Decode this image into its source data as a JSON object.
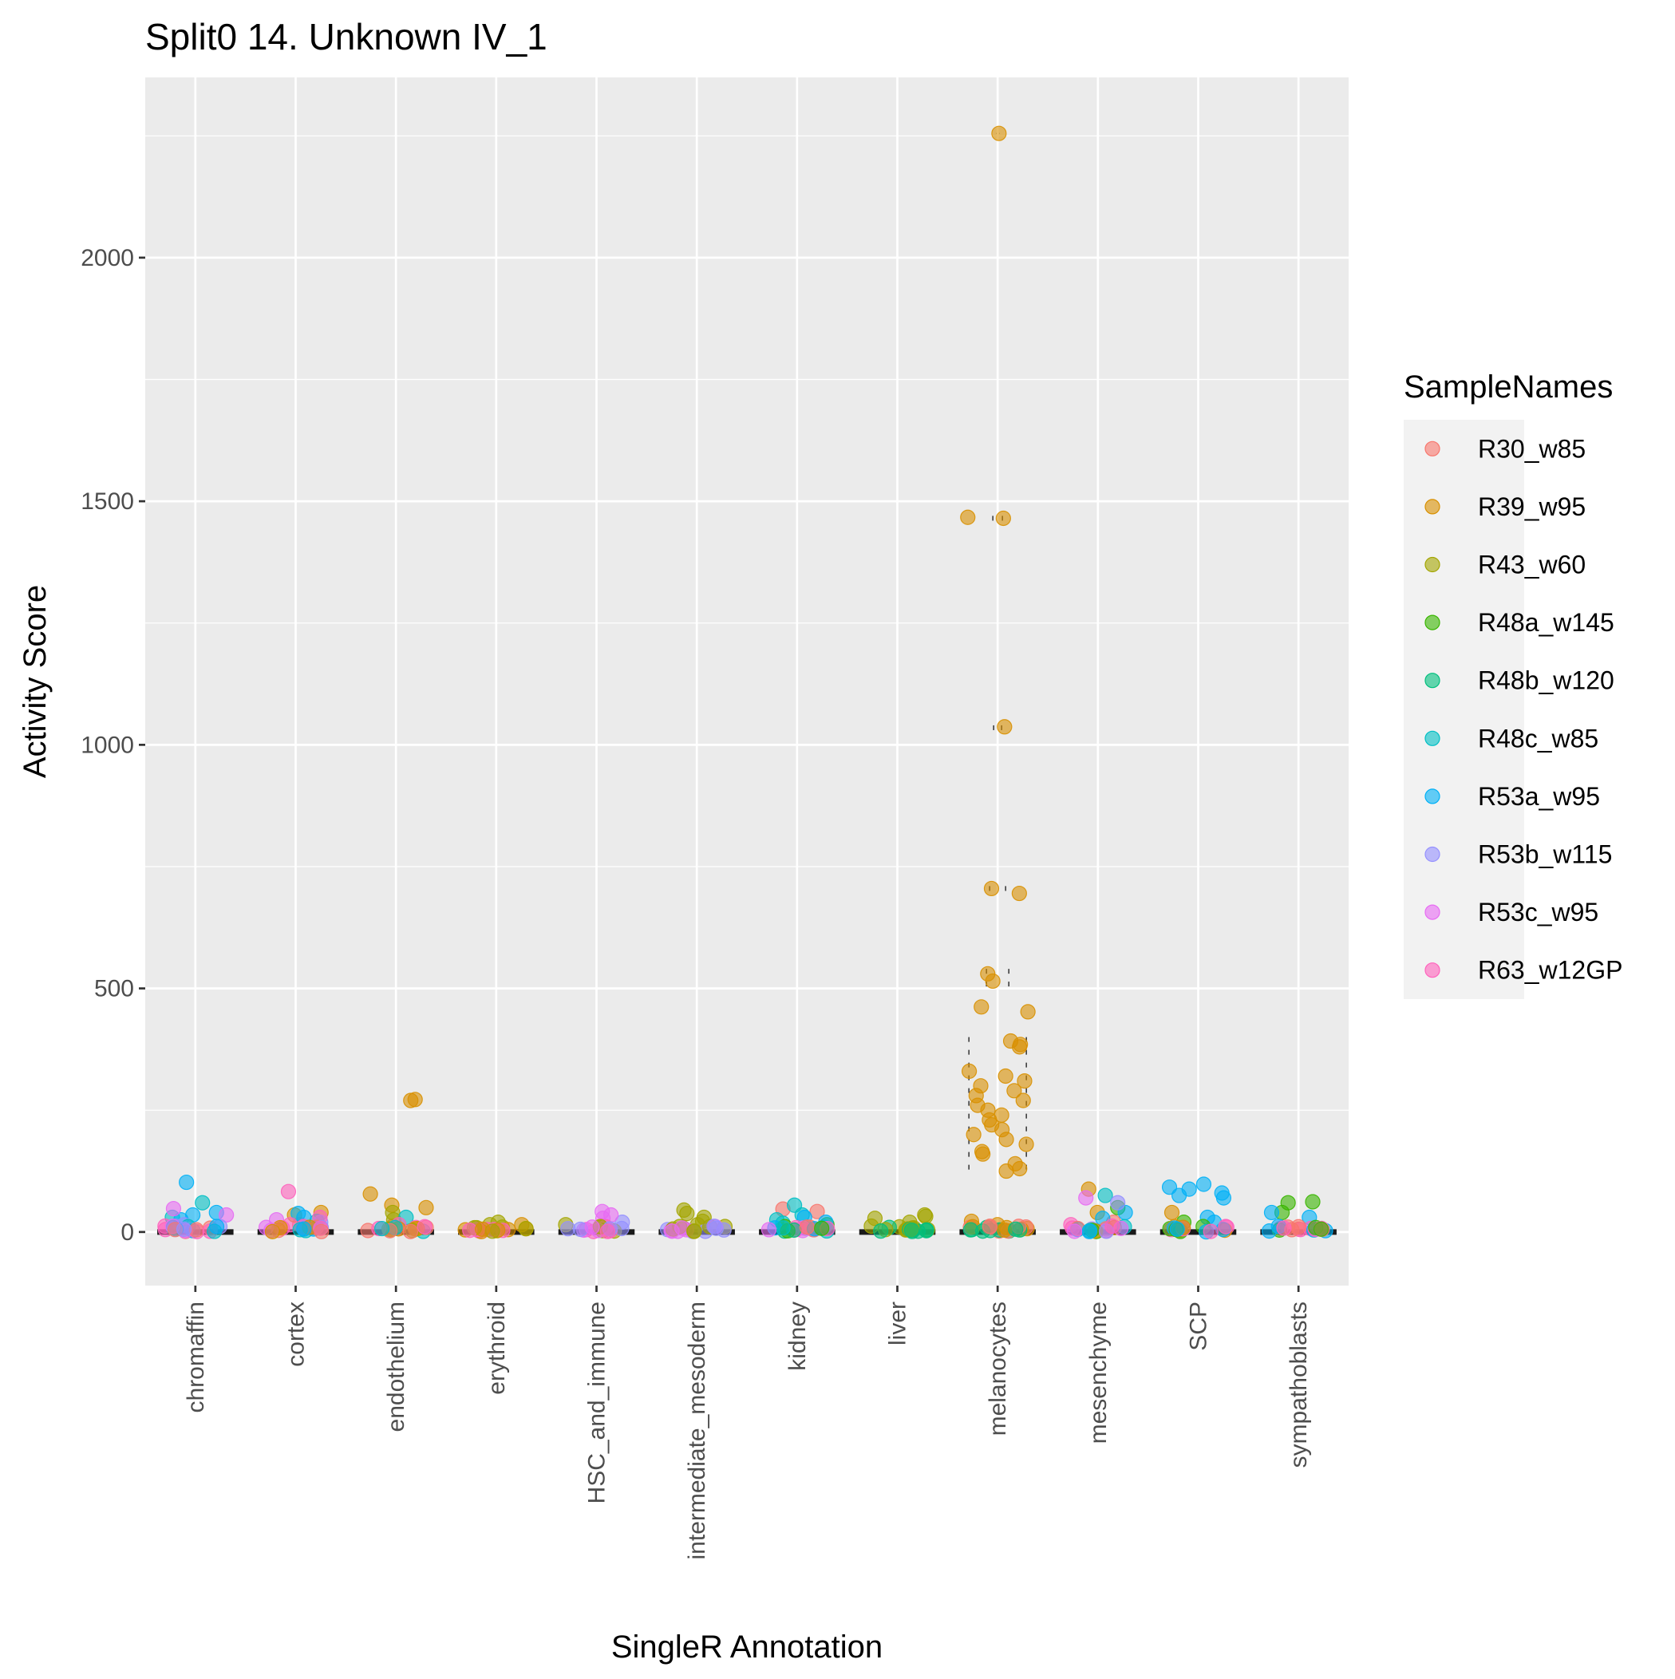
{
  "chart_data": {
    "type": "scatter",
    "subtype": "violin with jittered points",
    "title": "Split0 14. Unknown IV_1",
    "xlabel": "SingleR Annotation",
    "ylabel": "Activity Score",
    "ylim": [
      -110,
      2370
    ],
    "yticks": [
      0,
      500,
      1000,
      1500,
      2000
    ],
    "ytick_labels": [
      "0",
      "500",
      "1000",
      "1500",
      "2000"
    ],
    "grid": true,
    "legend_position": "right",
    "legend_title": "SampleNames",
    "categories": [
      "chromaffin",
      "cortex",
      "endothelium",
      "erythroid",
      "HSC_and_immune",
      "intermediate_mesoderm",
      "kidney",
      "liver",
      "melanocytes",
      "mesenchyme",
      "SCP",
      "sympathoblasts"
    ],
    "series": [
      {
        "name": "R30_w85",
        "color": "#F8766D",
        "points": [
          [
            "chromaffin",
            8
          ],
          [
            "cortex",
            15
          ],
          [
            "endothelium",
            12
          ],
          [
            "kidney",
            47
          ],
          [
            "kidney",
            42
          ],
          [
            "mesenchyme",
            20
          ],
          [
            "sympathoblasts",
            6
          ],
          [
            "melanocytes",
            2
          ]
        ]
      },
      {
        "name": "R39_w95",
        "color": "#D89000",
        "points": [
          [
            "melanocytes",
            2255
          ],
          [
            "melanocytes",
            1467
          ],
          [
            "melanocytes",
            1465
          ],
          [
            "melanocytes",
            1037
          ],
          [
            "melanocytes",
            705
          ],
          [
            "melanocytes",
            695
          ],
          [
            "melanocytes",
            530
          ],
          [
            "melanocytes",
            515
          ],
          [
            "melanocytes",
            462
          ],
          [
            "melanocytes",
            452
          ],
          [
            "melanocytes",
            392
          ],
          [
            "melanocytes",
            385
          ],
          [
            "melanocytes",
            380
          ],
          [
            "melanocytes",
            330
          ],
          [
            "melanocytes",
            320
          ],
          [
            "melanocytes",
            310
          ],
          [
            "melanocytes",
            300
          ],
          [
            "melanocytes",
            290
          ],
          [
            "melanocytes",
            280
          ],
          [
            "melanocytes",
            270
          ],
          [
            "melanocytes",
            260
          ],
          [
            "melanocytes",
            250
          ],
          [
            "melanocytes",
            240
          ],
          [
            "melanocytes",
            230
          ],
          [
            "melanocytes",
            220
          ],
          [
            "melanocytes",
            210
          ],
          [
            "melanocytes",
            200
          ],
          [
            "melanocytes",
            190
          ],
          [
            "melanocytes",
            180
          ],
          [
            "melanocytes",
            165
          ],
          [
            "melanocytes",
            160
          ],
          [
            "melanocytes",
            140
          ],
          [
            "melanocytes",
            130
          ],
          [
            "melanocytes",
            125
          ],
          [
            "melanocytes",
            22
          ],
          [
            "melanocytes",
            15
          ],
          [
            "endothelium",
            272
          ],
          [
            "endothelium",
            270
          ],
          [
            "endothelium",
            78
          ],
          [
            "endothelium",
            55
          ],
          [
            "endothelium",
            50
          ],
          [
            "cortex",
            40
          ],
          [
            "cortex",
            35
          ],
          [
            "mesenchyme",
            88
          ],
          [
            "mesenchyme",
            40
          ],
          [
            "SCP",
            40
          ],
          [
            "erythroid",
            15
          ]
        ]
      },
      {
        "name": "R43_w60",
        "color": "#A3A500",
        "points": [
          [
            "intermediate_mesoderm",
            45
          ],
          [
            "intermediate_mesoderm",
            38
          ],
          [
            "intermediate_mesoderm",
            30
          ],
          [
            "intermediate_mesoderm",
            22
          ],
          [
            "intermediate_mesoderm",
            15
          ],
          [
            "intermediate_mesoderm",
            8
          ],
          [
            "liver",
            35
          ],
          [
            "liver",
            32
          ],
          [
            "liver",
            28
          ],
          [
            "liver",
            20
          ],
          [
            "liver",
            12
          ],
          [
            "liver",
            5
          ],
          [
            "erythroid",
            20
          ],
          [
            "erythroid",
            15
          ],
          [
            "erythroid",
            10
          ],
          [
            "endothelium",
            40
          ],
          [
            "endothelium",
            25
          ],
          [
            "HSC_and_immune",
            15
          ]
        ]
      },
      {
        "name": "R48a_w145",
        "color": "#39B600",
        "points": [
          [
            "sympathoblasts",
            62
          ],
          [
            "sympathoblasts",
            60
          ],
          [
            "sympathoblasts",
            40
          ],
          [
            "mesenchyme",
            50
          ],
          [
            "kidney",
            15
          ],
          [
            "SCP",
            20
          ]
        ]
      },
      {
        "name": "R48b_w120",
        "color": "#00BF7D",
        "points": [
          [
            "melanocytes",
            5
          ],
          [
            "melanocytes",
            4
          ],
          [
            "melanocytes",
            3
          ],
          [
            "melanocytes",
            2
          ],
          [
            "liver",
            5
          ],
          [
            "kidney",
            8
          ]
        ]
      },
      {
        "name": "R48c_w85",
        "color": "#00BFC4",
        "points": [
          [
            "chromaffin",
            60
          ],
          [
            "chromaffin",
            30
          ],
          [
            "kidney",
            55
          ],
          [
            "kidney",
            35
          ],
          [
            "kidney",
            25
          ],
          [
            "kidney",
            18
          ],
          [
            "kidney",
            10
          ],
          [
            "mesenchyme",
            75
          ],
          [
            "endothelium",
            30
          ],
          [
            "cortex",
            22
          ]
        ]
      },
      {
        "name": "R53a_w95",
        "color": "#00B0F6",
        "points": [
          [
            "chromaffin",
            102
          ],
          [
            "chromaffin",
            40
          ],
          [
            "chromaffin",
            35
          ],
          [
            "chromaffin",
            25
          ],
          [
            "SCP",
            98
          ],
          [
            "SCP",
            92
          ],
          [
            "SCP",
            88
          ],
          [
            "SCP",
            80
          ],
          [
            "SCP",
            75
          ],
          [
            "SCP",
            70
          ],
          [
            "SCP",
            30
          ],
          [
            "SCP",
            20
          ],
          [
            "sympathoblasts",
            40
          ],
          [
            "sympathoblasts",
            30
          ],
          [
            "mesenchyme",
            40
          ],
          [
            "mesenchyme",
            28
          ],
          [
            "cortex",
            38
          ],
          [
            "cortex",
            30
          ],
          [
            "kidney",
            30
          ],
          [
            "kidney",
            20
          ]
        ]
      },
      {
        "name": "R53b_w115",
        "color": "#9590FF",
        "points": [
          [
            "HSC_and_immune",
            20
          ],
          [
            "intermediate_mesoderm",
            5
          ],
          [
            "mesenchyme",
            60
          ],
          [
            "cortex",
            20
          ],
          [
            "chromaffin",
            15
          ]
        ]
      },
      {
        "name": "R53c_w95",
        "color": "#E76BF3",
        "points": [
          [
            "chromaffin",
            48
          ],
          [
            "chromaffin",
            35
          ],
          [
            "HSC_and_immune",
            42
          ],
          [
            "HSC_and_immune",
            35
          ],
          [
            "HSC_and_immune",
            28
          ],
          [
            "kidney",
            5
          ],
          [
            "kidney",
            3
          ],
          [
            "mesenchyme",
            70
          ],
          [
            "cortex",
            25
          ],
          [
            "intermediate_mesoderm",
            3
          ]
        ]
      },
      {
        "name": "R63_w12GP",
        "color": "#FF62BC",
        "points": [
          [
            "cortex",
            83
          ],
          [
            "cortex",
            30
          ],
          [
            "cortex",
            15
          ],
          [
            "cortex",
            8
          ],
          [
            "chromaffin",
            12
          ],
          [
            "chromaffin",
            5
          ],
          [
            "endothelium",
            15
          ],
          [
            "endothelium",
            8
          ],
          [
            "erythroid",
            5
          ],
          [
            "HSC_and_immune",
            5
          ],
          [
            "mesenchyme",
            15
          ],
          [
            "mesenchyme",
            8
          ],
          [
            "SCP",
            10
          ],
          [
            "SCP",
            5
          ],
          [
            "sympathoblasts",
            8
          ],
          [
            "sympathoblasts",
            5
          ],
          [
            "kidney",
            5
          ]
        ]
      }
    ]
  }
}
